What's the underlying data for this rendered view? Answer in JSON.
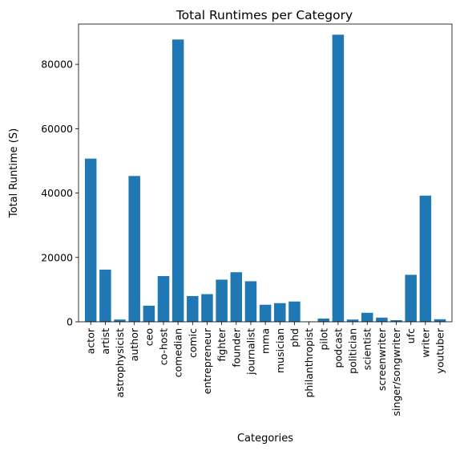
{
  "chart_data": {
    "type": "bar",
    "title": "Total Runtimes per Category",
    "xlabel": "Categories",
    "ylabel": "Total Runtime (S)",
    "ylim": [
      0,
      92500
    ],
    "yticks": [
      0,
      20000,
      40000,
      60000,
      80000
    ],
    "ytick_labels": [
      "0",
      "20000",
      "40000",
      "60000",
      "80000"
    ],
    "grid": false,
    "bar_color": "#1f77b4",
    "categories": [
      "actor",
      "artist",
      "astrophysicist",
      "author",
      "ceo",
      "co-host",
      "comedian",
      "comic",
      "entrepreneur",
      "fighter",
      "founder",
      "journalist",
      "mma",
      "musician",
      "phd",
      "philanthropist",
      "pilot",
      "podcast",
      "politician",
      "scientist",
      "screenwriter",
      "singer/songwriter",
      "ufc",
      "writer",
      "youtuber"
    ],
    "values": [
      50700,
      16200,
      700,
      45300,
      5000,
      14200,
      87700,
      8000,
      8600,
      13100,
      15400,
      12600,
      5300,
      5800,
      6300,
      100,
      1000,
      89200,
      700,
      2800,
      1300,
      500,
      14600,
      39200,
      800
    ]
  }
}
